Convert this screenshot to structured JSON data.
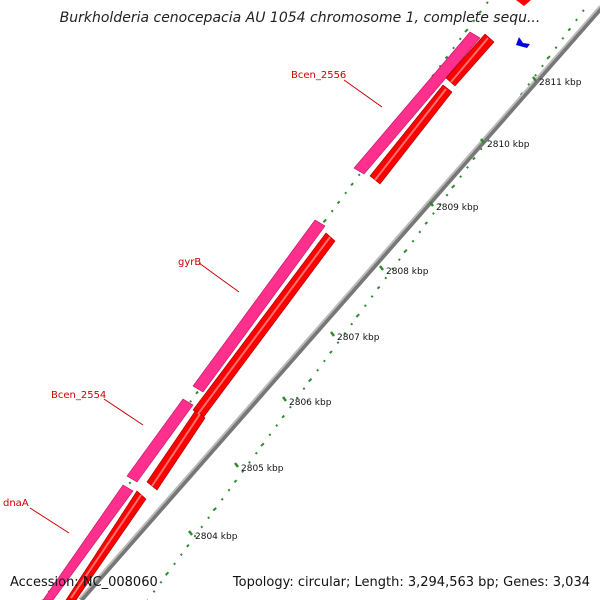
{
  "title": "Burkholderia cenocepacia AU 1054 chromosome 1, complete sequ...",
  "footer": {
    "accession": "Accession: NC_008060",
    "summary": "Topology: circular; Length: 3,294,563 bp; Genes: 3,034"
  },
  "colors": {
    "cds_forward": "#ff2f8e",
    "cds_reverse": "#ff0000",
    "backbone": "#999999",
    "gc_ticks": "#2e8b2e",
    "small_feature": "#0000dd"
  },
  "gene_labels": [
    {
      "name": "Bcen_2556"
    },
    {
      "name": "gyrB"
    },
    {
      "name": "Bcen_2554"
    },
    {
      "name": "dnaA"
    }
  ],
  "ruler": [
    {
      "label": "2811 kbp"
    },
    {
      "label": "2810 kbp"
    },
    {
      "label": "2809 kbp"
    },
    {
      "label": "2808 kbp"
    },
    {
      "label": "2807 kbp"
    },
    {
      "label": "2806 kbp"
    },
    {
      "label": "2805 kbp"
    },
    {
      "label": "2804 kbp"
    }
  ]
}
